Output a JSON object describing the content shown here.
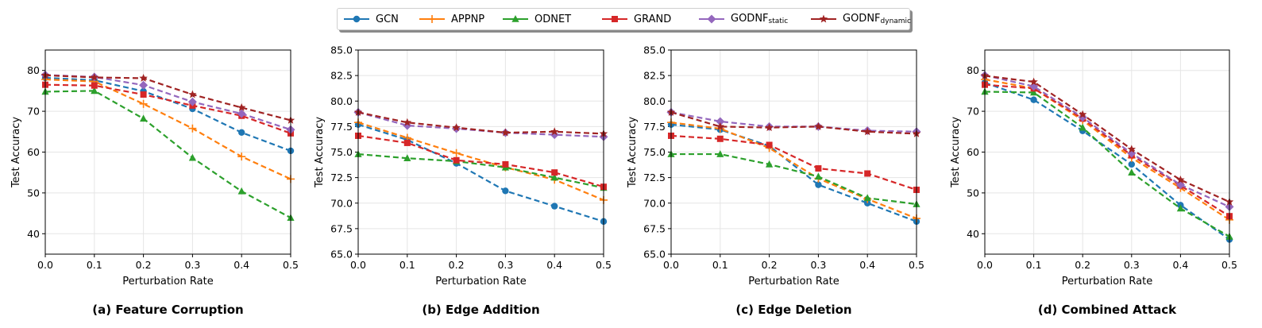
{
  "legend": {
    "entries": [
      {
        "name": "GCN",
        "sub": "",
        "color": "#1f77b4",
        "marker": "circle"
      },
      {
        "name": "APPNP",
        "sub": "",
        "color": "#ff7f0e",
        "marker": "plus"
      },
      {
        "name": "ODNET",
        "sub": "",
        "color": "#2ca02c",
        "marker": "triangle"
      },
      {
        "name": "GRAND",
        "sub": "",
        "color": "#d62728",
        "marker": "square"
      },
      {
        "name": "GODNF",
        "sub": "static",
        "color": "#9467bd",
        "marker": "diamond"
      },
      {
        "name": "GODNF",
        "sub": "dynamic",
        "color": "#a02323",
        "marker": "star"
      }
    ]
  },
  "chart_data": [
    {
      "type": "line",
      "title": "(a) Feature Corruption",
      "xlabel": "Perturbation Rate",
      "ylabel": "Test Accuracy",
      "xlim": [
        0,
        0.5
      ],
      "ylim": [
        35,
        85
      ],
      "xticks": [
        "0.0",
        "0.1",
        "0.2",
        "0.3",
        "0.4",
        "0.5"
      ],
      "yticks": [
        "40",
        "50",
        "60",
        "70",
        "80"
      ],
      "grid": true,
      "x": [
        0.0,
        0.1,
        0.2,
        0.3,
        0.4,
        0.5
      ],
      "series": [
        {
          "name": "GCN",
          "values": [
            78.2,
            77.6,
            74.9,
            70.6,
            64.8,
            60.3
          ]
        },
        {
          "name": "APPNP",
          "values": [
            77.8,
            77.3,
            71.8,
            65.8,
            58.9,
            53.4
          ]
        },
        {
          "name": "ODNET",
          "values": [
            74.8,
            75.0,
            68.2,
            58.6,
            50.4,
            43.9
          ]
        },
        {
          "name": "GRAND",
          "values": [
            76.5,
            76.3,
            74.1,
            71.4,
            68.9,
            64.6
          ]
        },
        {
          "name": "GODNF static",
          "values": [
            78.9,
            78.4,
            76.4,
            72.3,
            69.4,
            65.5
          ]
        },
        {
          "name": "GODNF dynamic",
          "values": [
            78.8,
            78.3,
            78.1,
            74.1,
            70.9,
            67.8
          ]
        }
      ]
    },
    {
      "type": "line",
      "title": "(b) Edge Addition",
      "xlabel": "Perturbation Rate",
      "ylabel": "Test Accuracy",
      "xlim": [
        0,
        0.5
      ],
      "ylim": [
        65,
        85
      ],
      "xticks": [
        "0.0",
        "0.1",
        "0.2",
        "0.3",
        "0.4",
        "0.5"
      ],
      "yticks": [
        "65.0",
        "67.5",
        "70.0",
        "72.5",
        "75.0",
        "77.5",
        "80.0",
        "82.5",
        "85.0"
      ],
      "grid": true,
      "x": [
        0.0,
        0.1,
        0.2,
        0.3,
        0.4,
        0.5
      ],
      "series": [
        {
          "name": "GCN",
          "values": [
            77.7,
            76.2,
            73.9,
            71.2,
            69.7,
            68.2
          ]
        },
        {
          "name": "APPNP",
          "values": [
            77.9,
            76.4,
            74.9,
            73.5,
            72.3,
            70.3
          ]
        },
        {
          "name": "ODNET",
          "values": [
            74.8,
            74.4,
            74.1,
            73.5,
            72.5,
            71.5
          ]
        },
        {
          "name": "GRAND",
          "values": [
            76.6,
            75.9,
            74.2,
            73.8,
            73.0,
            71.6
          ]
        },
        {
          "name": "GODNF static",
          "values": [
            78.9,
            77.6,
            77.3,
            76.9,
            76.7,
            76.5
          ]
        },
        {
          "name": "GODNF dynamic",
          "values": [
            78.9,
            77.9,
            77.4,
            76.9,
            77.0,
            76.8
          ]
        }
      ]
    },
    {
      "type": "line",
      "title": "(c) Edge Deletion",
      "xlabel": "Perturbation Rate",
      "ylabel": "Test Accuracy",
      "xlim": [
        0,
        0.5
      ],
      "ylim": [
        65,
        85
      ],
      "xticks": [
        "0.0",
        "0.1",
        "0.2",
        "0.3",
        "0.4",
        "0.5"
      ],
      "yticks": [
        "65.0",
        "67.5",
        "70.0",
        "72.5",
        "75.0",
        "77.5",
        "80.0",
        "82.5",
        "85.0"
      ],
      "grid": true,
      "x": [
        0.0,
        0.1,
        0.2,
        0.3,
        0.4,
        0.5
      ],
      "series": [
        {
          "name": "GCN",
          "values": [
            77.7,
            77.2,
            75.6,
            71.8,
            70.0,
            68.2
          ]
        },
        {
          "name": "APPNP",
          "values": [
            77.9,
            77.3,
            75.4,
            72.4,
            70.4,
            68.5
          ]
        },
        {
          "name": "ODNET",
          "values": [
            74.8,
            74.8,
            73.8,
            72.6,
            70.5,
            69.9
          ]
        },
        {
          "name": "GRAND",
          "values": [
            76.6,
            76.3,
            75.7,
            73.4,
            72.9,
            71.3
          ]
        },
        {
          "name": "GODNF static",
          "values": [
            78.9,
            78.0,
            77.5,
            77.5,
            77.1,
            77.0
          ]
        },
        {
          "name": "GODNF dynamic",
          "values": [
            78.9,
            77.5,
            77.4,
            77.5,
            77.0,
            76.8
          ]
        }
      ]
    },
    {
      "type": "line",
      "title": "(d) Combined Attack",
      "xlabel": "Perturbation Rate",
      "ylabel": "Test Accuracy",
      "xlim": [
        0,
        0.5
      ],
      "ylim": [
        35,
        85
      ],
      "xticks": [
        "0.0",
        "0.1",
        "0.2",
        "0.3",
        "0.4",
        "0.5"
      ],
      "yticks": [
        "40",
        "50",
        "60",
        "70",
        "80"
      ],
      "grid": true,
      "x": [
        0.0,
        0.1,
        0.2,
        0.3,
        0.4,
        0.5
      ],
      "series": [
        {
          "name": "GCN",
          "values": [
            77.0,
            72.8,
            65.2,
            57.0,
            47.0,
            38.6
          ]
        },
        {
          "name": "APPNP",
          "values": [
            77.8,
            75.6,
            67.8,
            58.6,
            51.2,
            43.4
          ]
        },
        {
          "name": "ODNET",
          "values": [
            74.8,
            74.6,
            66.0,
            55.0,
            46.2,
            39.3
          ]
        },
        {
          "name": "GRAND",
          "values": [
            76.5,
            75.6,
            68.2,
            59.2,
            51.8,
            44.3
          ]
        },
        {
          "name": "GODNF static",
          "values": [
            78.8,
            76.1,
            68.5,
            59.7,
            52.0,
            46.6
          ]
        },
        {
          "name": "GODNF dynamic",
          "values": [
            78.7,
            77.2,
            69.2,
            60.7,
            53.2,
            47.8
          ]
        }
      ]
    }
  ]
}
